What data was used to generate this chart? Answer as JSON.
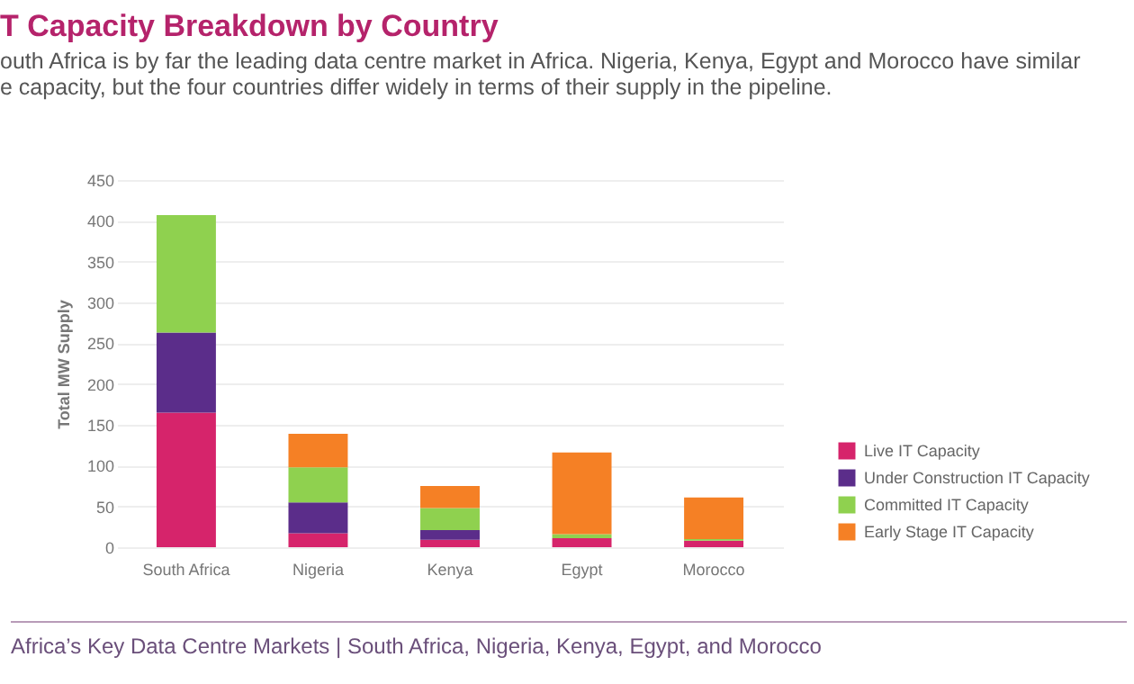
{
  "chart_data": {
    "type": "bar",
    "title": "T Capacity Breakdown by Country",
    "subtitle": "outh Africa is by far the leading data centre market in Africa. Nigeria, Kenya, Egypt and Morocco have similar\ne capacity, but the four countries differ widely in terms of their supply in the pipeline.",
    "ylabel": "Total MW Supply",
    "annotations": [
      "Africa’s Key Data Centre Markets | South Africa, Nigeria, Kenya, Egypt, and Morocco"
    ],
    "categories": [
      "South Africa",
      "Nigeria",
      "Kenya",
      "Egypt",
      "Morocco"
    ],
    "stacked": true,
    "series": [
      {
        "name": "Live IT Capacity",
        "color": "#d6246b",
        "values": [
          165,
          17,
          9,
          11,
          8
        ]
      },
      {
        "name": "Under Construction IT Capacity",
        "color": "#5b2d8a",
        "values": [
          98,
          38,
          12,
          0,
          0
        ]
      },
      {
        "name": "Committed IT Capacity",
        "color": "#8fd14f",
        "values": [
          144,
          43,
          27,
          5,
          2
        ]
      },
      {
        "name": "Early Stage IT Capacity",
        "color": "#f58025",
        "values": [
          0,
          41,
          27,
          100,
          51
        ]
      }
    ],
    "ylim": [
      0,
      450
    ],
    "yticks": [
      0,
      50,
      100,
      150,
      200,
      250,
      300,
      350,
      400,
      450
    ],
    "grid": "y",
    "legend": "right"
  }
}
